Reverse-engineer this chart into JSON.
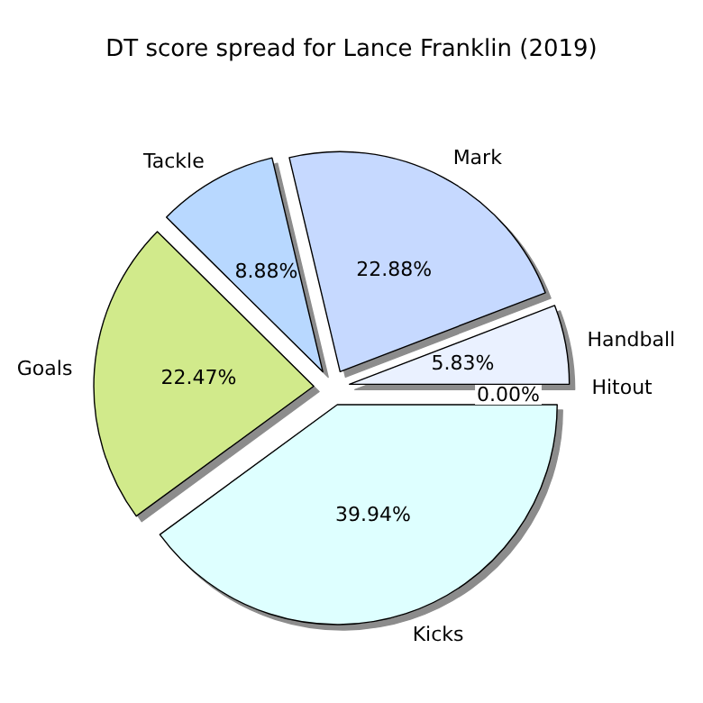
{
  "chart_data": {
    "type": "pie",
    "title": "DT score spread for Lance Franklin (2019)",
    "categories": [
      "Hitout",
      "Handball",
      "Mark",
      "Tackle",
      "Goals",
      "Kicks"
    ],
    "values": [
      0,
      5.83,
      22.88,
      8.88,
      22.47,
      39.94
    ],
    "value_labels": [
      "0.00%",
      "5.83%",
      "22.88%",
      "8.88%",
      "22.47%",
      "39.94%"
    ],
    "colors": [
      "#f4f8ff",
      "#eaf1ff",
      "#c6d9ff",
      "#b8d8ff",
      "#d1ea8b",
      "#deffff"
    ],
    "legend": false
  }
}
